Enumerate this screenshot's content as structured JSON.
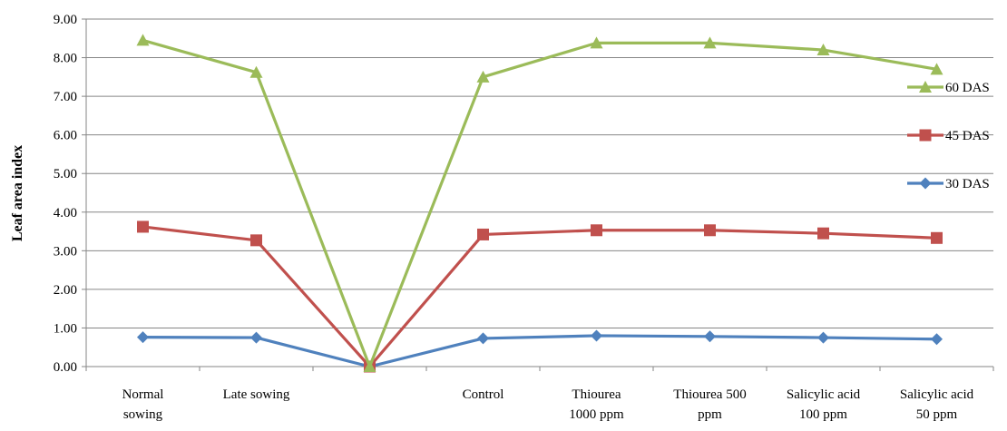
{
  "chart_data": {
    "type": "line",
    "title": "",
    "xlabel": "",
    "ylabel": "Leaf area index",
    "ylim": [
      0,
      9
    ],
    "ytick_step": 1,
    "y_ticks": [
      "0.00",
      "1.00",
      "2.00",
      "3.00",
      "4.00",
      "5.00",
      "6.00",
      "7.00",
      "8.00",
      "9.00"
    ],
    "grid": true,
    "legend_position": "right",
    "categories": [
      [
        "Normal",
        "sowing"
      ],
      [
        "Late sowing"
      ],
      [
        ""
      ],
      [
        "Control"
      ],
      [
        "Thiourea",
        "1000 ppm"
      ],
      [
        "Thiourea 500",
        "ppm"
      ],
      [
        "Salicylic acid",
        "100 ppm"
      ],
      [
        "Salicylic acid",
        "50 ppm"
      ]
    ],
    "series": [
      {
        "name": "60 DAS",
        "color": "#9bbb59",
        "marker": "triangle",
        "values": [
          8.45,
          7.62,
          0,
          7.5,
          8.38,
          8.38,
          8.2,
          7.7
        ]
      },
      {
        "name": "45 DAS",
        "color": "#c0504d",
        "marker": "square",
        "values": [
          3.62,
          3.27,
          0,
          3.42,
          3.53,
          3.53,
          3.45,
          3.33
        ]
      },
      {
        "name": "30 DAS",
        "color": "#4f81bd",
        "marker": "diamond",
        "values": [
          0.76,
          0.75,
          0,
          0.73,
          0.8,
          0.78,
          0.75,
          0.71
        ]
      }
    ]
  }
}
